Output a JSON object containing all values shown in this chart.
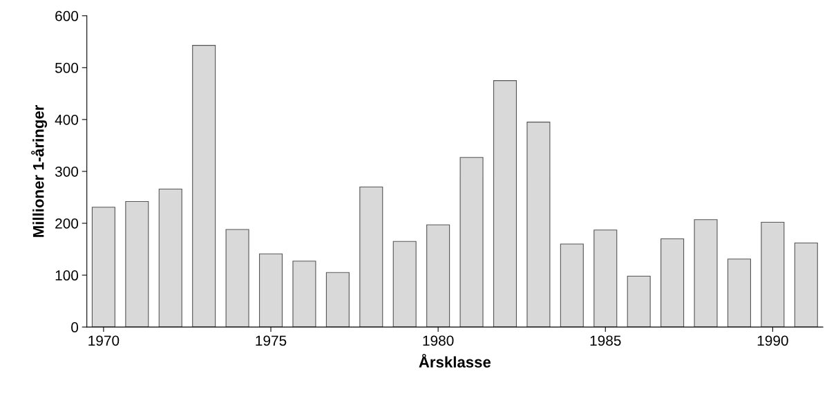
{
  "chart_data": {
    "type": "bar",
    "xlabel": "Årsklasse",
    "ylabel": "Millioner 1-åringer",
    "x": [
      1970,
      1971,
      1972,
      1973,
      1974,
      1975,
      1976,
      1977,
      1978,
      1979,
      1980,
      1981,
      1982,
      1983,
      1984,
      1985,
      1986,
      1987,
      1988,
      1989,
      1990,
      1991
    ],
    "values": [
      231,
      242,
      266,
      543,
      188,
      141,
      127,
      105,
      270,
      165,
      197,
      327,
      475,
      395,
      160,
      187,
      98,
      170,
      207,
      131,
      202,
      162
    ],
    "color": "#d9d9d9",
    "xlim": [
      1969.5,
      1991.5
    ],
    "xticks": [
      1970,
      1975,
      1980,
      1985,
      1990
    ],
    "ylim": [
      0,
      600
    ],
    "yticks": [
      0,
      100,
      200,
      300,
      400,
      500,
      600
    ],
    "grid": false,
    "legend": false
  }
}
